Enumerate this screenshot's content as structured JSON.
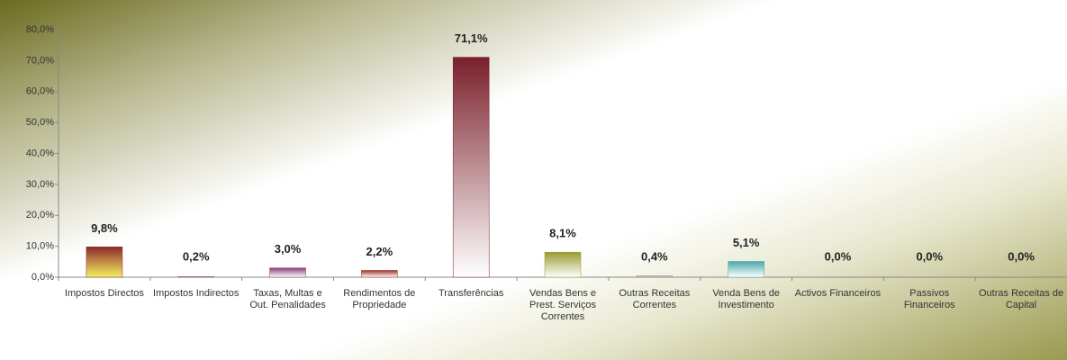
{
  "chart_data": {
    "type": "bar",
    "categories": [
      "Impostos Directos",
      "Impostos Indirectos",
      "Taxas, Multas e Out. Penalidades",
      "Rendimentos de Propriedade",
      "Transferências",
      "Vendas Bens e Prest. Serviços Correntes",
      "Outras Receitas Correntes",
      "Venda Bens de Investimento",
      "Activos Financeiros",
      "Passivos Financeiros",
      "Outras Receitas de Capital"
    ],
    "values": [
      9.8,
      0.2,
      3.0,
      2.2,
      71.1,
      8.1,
      0.4,
      5.1,
      0.0,
      0.0,
      0.0
    ],
    "value_labels": [
      "9,8%",
      "0,2%",
      "3,0%",
      "2,2%",
      "71,1%",
      "8,1%",
      "0,4%",
      "5,1%",
      "0,0%",
      "0,0%",
      "0,0%"
    ],
    "colors": [
      "#8b2a2a",
      "#8b4a6a",
      "#8a3a7a",
      "#a0302a",
      "#7a1f2a",
      "#9a9a30",
      "#8a7a7a",
      "#4aa8a8",
      "#8a8a8a",
      "#8a8a8a",
      "#8a8a8a"
    ],
    "ylim": [
      0,
      80
    ],
    "yticks": [
      {
        "value": 0,
        "label": "0,0%"
      },
      {
        "value": 10,
        "label": "10,0%"
      },
      {
        "value": 20,
        "label": "20,0%"
      },
      {
        "value": 30,
        "label": "30,0%"
      },
      {
        "value": 40,
        "label": "40,0%"
      },
      {
        "value": 50,
        "label": "50,0%"
      },
      {
        "value": 60,
        "label": "60,0%"
      },
      {
        "value": 70,
        "label": "70,0%"
      },
      {
        "value": 80,
        "label": "80,0%"
      }
    ]
  }
}
